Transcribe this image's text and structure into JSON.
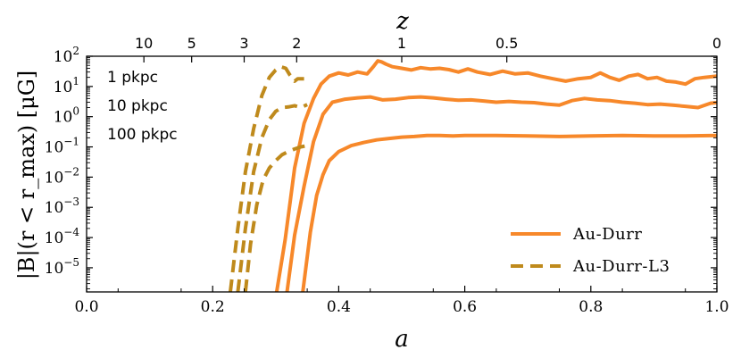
{
  "chart_data": {
    "type": "line",
    "xlabel": "a",
    "ylabel": "|B|(r < r_max) [μG]",
    "top_axis_label": "z",
    "xlim": [
      0.0,
      1.0
    ],
    "ylim_log10": [
      -5.8,
      2.0
    ],
    "yscale": "log",
    "grid": false,
    "legend_position": "lower-right",
    "x_ticks": [
      0.0,
      0.2,
      0.4,
      0.6,
      0.8,
      1.0
    ],
    "x_tick_labels": [
      "0.0",
      "0.2",
      "0.4",
      "0.6",
      "0.8",
      "1.0"
    ],
    "y_ticks_log10": [
      -5,
      -4,
      -3,
      -2,
      -1,
      0,
      1,
      2
    ],
    "y_tick_labels": [
      {
        "base": "10",
        "exp": "−5"
      },
      {
        "base": "10",
        "exp": "−4"
      },
      {
        "base": "10",
        "exp": "−3"
      },
      {
        "base": "10",
        "exp": "−2"
      },
      {
        "base": "10",
        "exp": "−1"
      },
      {
        "base": "10",
        "exp": "0"
      },
      {
        "base": "10",
        "exp": "1"
      },
      {
        "base": "10",
        "exp": "2"
      }
    ],
    "top_ticks": [
      {
        "label": "10",
        "a": 0.0909
      },
      {
        "label": "5",
        "a": 0.1667
      },
      {
        "label": "3",
        "a": 0.25
      },
      {
        "label": "2",
        "a": 0.3333
      },
      {
        "label": "1",
        "a": 0.5
      },
      {
        "label": "0.5",
        "a": 0.6667
      },
      {
        "label": "0",
        "a": 1.0
      }
    ],
    "annotations": [
      "1 pkpc",
      "10 pkpc",
      "100 pkpc"
    ],
    "colors": {
      "au_durr": "#f7882a",
      "au_durr_l3": "#bf8a1c"
    },
    "series": [
      {
        "name": "Au-Durr",
        "style": "solid",
        "color": "#f7882a",
        "radius": "1 pkpc",
        "x": [
          0.3,
          0.315,
          0.33,
          0.345,
          0.36,
          0.372,
          0.385,
          0.4,
          0.415,
          0.43,
          0.445,
          0.455,
          0.462,
          0.468,
          0.475,
          0.485,
          0.5,
          0.515,
          0.53,
          0.545,
          0.56,
          0.575,
          0.59,
          0.605,
          0.62,
          0.64,
          0.66,
          0.68,
          0.7,
          0.72,
          0.74,
          0.76,
          0.78,
          0.8,
          0.815,
          0.83,
          0.845,
          0.86,
          0.875,
          0.89,
          0.905,
          0.92,
          0.935,
          0.95,
          0.965,
          0.98,
          1.0
        ],
        "y": [
          1e-06,
          8.5e-05,
          0.02,
          0.6,
          4.0,
          12,
          22,
          28,
          24,
          30,
          26,
          45,
          70,
          65,
          55,
          45,
          40,
          35,
          42,
          38,
          40,
          36,
          30,
          38,
          30,
          25,
          32,
          26,
          28,
          22,
          18,
          15,
          18,
          20,
          28,
          20,
          16,
          22,
          25,
          18,
          20,
          15,
          14,
          12,
          18,
          20,
          22
        ]
      },
      {
        "name": "Au-Durr",
        "style": "solid",
        "color": "#f7882a",
        "radius": "10 pkpc",
        "x": [
          0.318,
          0.33,
          0.345,
          0.36,
          0.375,
          0.39,
          0.41,
          0.43,
          0.45,
          0.47,
          0.49,
          0.51,
          0.53,
          0.55,
          0.57,
          0.59,
          0.61,
          0.63,
          0.65,
          0.67,
          0.69,
          0.71,
          0.73,
          0.75,
          0.77,
          0.79,
          0.81,
          0.83,
          0.85,
          0.87,
          0.89,
          0.91,
          0.93,
          0.95,
          0.97,
          0.99,
          1.0
        ],
        "y": [
          1.6e-06,
          0.00012,
          0.005,
          0.15,
          1.2,
          3.0,
          3.8,
          4.2,
          4.5,
          3.6,
          3.8,
          4.3,
          4.5,
          4.2,
          3.8,
          3.5,
          3.6,
          3.3,
          3.0,
          3.2,
          3.0,
          2.9,
          2.6,
          2.4,
          3.4,
          4.0,
          3.6,
          3.4,
          3.0,
          2.8,
          2.5,
          2.6,
          2.4,
          2.2,
          2.0,
          2.8,
          2.9
        ]
      },
      {
        "name": "Au-Durr",
        "style": "solid",
        "color": "#f7882a",
        "radius": "100 pkpc",
        "x": [
          0.343,
          0.355,
          0.365,
          0.375,
          0.385,
          0.4,
          0.42,
          0.44,
          0.46,
          0.48,
          0.5,
          0.52,
          0.54,
          0.56,
          0.58,
          0.6,
          0.65,
          0.7,
          0.75,
          0.8,
          0.85,
          0.9,
          0.95,
          1.0
        ],
        "y": [
          1.6e-06,
          0.00015,
          0.0025,
          0.012,
          0.035,
          0.07,
          0.11,
          0.14,
          0.17,
          0.19,
          0.21,
          0.22,
          0.24,
          0.24,
          0.23,
          0.24,
          0.24,
          0.23,
          0.22,
          0.23,
          0.24,
          0.23,
          0.23,
          0.24
        ]
      },
      {
        "name": "Au-Durr-L3",
        "style": "dashed",
        "color": "#bf8a1c",
        "radius": "1 pkpc",
        "x": [
          0.228,
          0.24,
          0.252,
          0.265,
          0.278,
          0.29,
          0.3,
          0.308,
          0.316,
          0.322,
          0.33,
          0.335,
          0.34,
          0.345
        ],
        "y": [
          1.6e-06,
          0.0002,
          0.015,
          0.4,
          5,
          20,
          35,
          45,
          40,
          25,
          15,
          18,
          18,
          18
        ]
      },
      {
        "name": "Au-Durr-L3",
        "style": "dashed",
        "color": "#bf8a1c",
        "radius": "10 pkpc",
        "x": [
          0.24,
          0.252,
          0.265,
          0.278,
          0.29,
          0.3,
          0.31,
          0.32,
          0.33,
          0.34,
          0.35
        ],
        "y": [
          1.6e-06,
          0.0002,
          0.015,
          0.2,
          0.8,
          1.5,
          2.0,
          2.1,
          2.3,
          2.0,
          2.5
        ]
      },
      {
        "name": "Au-Durr-L3",
        "style": "dashed",
        "color": "#bf8a1c",
        "radius": "100 pkpc",
        "x": [
          0.252,
          0.26,
          0.27,
          0.28,
          0.29,
          0.3,
          0.31,
          0.32,
          0.33,
          0.34,
          0.35
        ],
        "y": [
          1.6e-06,
          6e-05,
          0.0012,
          0.008,
          0.02,
          0.035,
          0.055,
          0.07,
          0.085,
          0.1,
          0.11
        ]
      }
    ],
    "legend": [
      {
        "label": "Au-Durr",
        "style": "solid",
        "color": "#f7882a"
      },
      {
        "label": "Au-Durr-L3",
        "style": "dashed",
        "color": "#bf8a1c"
      }
    ]
  }
}
